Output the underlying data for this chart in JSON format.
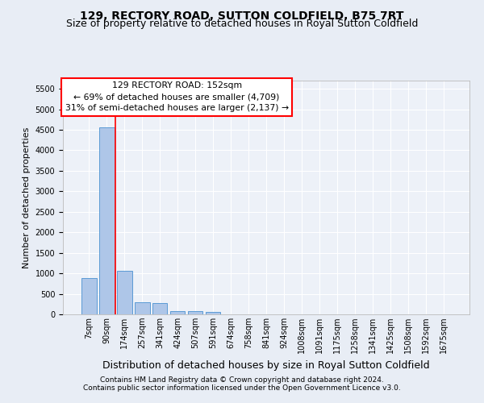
{
  "title": "129, RECTORY ROAD, SUTTON COLDFIELD, B75 7RT",
  "subtitle": "Size of property relative to detached houses in Royal Sutton Coldfield",
  "xlabel": "Distribution of detached houses by size in Royal Sutton Coldfield",
  "ylabel": "Number of detached properties",
  "footnote1": "Contains HM Land Registry data © Crown copyright and database right 2024.",
  "footnote2": "Contains public sector information licensed under the Open Government Licence v3.0.",
  "annotation_line1": "129 RECTORY ROAD: 152sqm",
  "annotation_line2": "← 69% of detached houses are smaller (4,709)",
  "annotation_line3": "31% of semi-detached houses are larger (2,137) →",
  "bar_color": "#aec6e8",
  "bar_edge_color": "#5b9bd5",
  "vline_color": "red",
  "categories": [
    "7sqm",
    "90sqm",
    "174sqm",
    "257sqm",
    "341sqm",
    "424sqm",
    "507sqm",
    "591sqm",
    "674sqm",
    "758sqm",
    "841sqm",
    "924sqm",
    "1008sqm",
    "1091sqm",
    "1175sqm",
    "1258sqm",
    "1341sqm",
    "1425sqm",
    "1508sqm",
    "1592sqm",
    "1675sqm"
  ],
  "values": [
    880,
    4560,
    1060,
    290,
    280,
    85,
    75,
    50,
    0,
    0,
    0,
    0,
    0,
    0,
    0,
    0,
    0,
    0,
    0,
    0,
    0
  ],
  "ylim": [
    0,
    5700
  ],
  "yticks": [
    0,
    500,
    1000,
    1500,
    2000,
    2500,
    3000,
    3500,
    4000,
    4500,
    5000,
    5500
  ],
  "vline_x": 1.5,
  "background_color": "#e8edf5",
  "plot_bg_color": "#edf1f8",
  "grid_color": "#ffffff",
  "title_fontsize": 10,
  "subtitle_fontsize": 9,
  "ylabel_fontsize": 8,
  "xlabel_fontsize": 9,
  "tick_fontsize": 7,
  "footnote_fontsize": 6.5
}
